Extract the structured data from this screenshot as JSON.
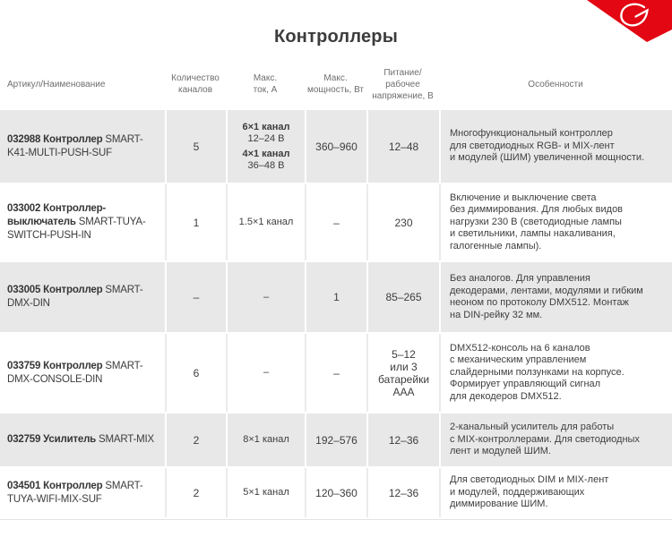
{
  "page": {
    "title": "Контроллеры"
  },
  "brand": {
    "logo": "arlight-swoosh",
    "red": "#e30613"
  },
  "colors": {
    "row_gray": "#e8e8e8",
    "row_white": "#ffffff",
    "header_text": "#6e6e6e",
    "body_text": "#3d3d3d"
  },
  "table": {
    "headers": [
      "Артикул/Наименование",
      "Количество\nканалов",
      "Макс.\nток, А",
      "Макс.\nмощность, Вт",
      "Питание/\nрабочее\nнапряжение, В",
      "Особенности"
    ],
    "rows": [
      {
        "article_bold": "032988 Контроллер",
        "article_rest": "SMART-K41-MULTI-PUSH-SUF",
        "channels": "5",
        "current": [
          {
            "t": "6×1 канал",
            "b": true
          },
          {
            "t": "12–24 В"
          },
          {
            "t": "4×1 канал",
            "b": true,
            "gap": true
          },
          {
            "t": "36–48 В"
          }
        ],
        "power": "360–960",
        "supply": "12–48",
        "features": "Многофункциональный контроллер\nдля светодиодных RGB- и MIX-лент\nи модулей (ШИМ) увеличенной мощности."
      },
      {
        "article_bold": "033002 Контроллер-выключатель",
        "article_rest": "SMART-TUYA-SWITCH-PUSH-IN",
        "channels": "1",
        "current": [
          {
            "t": "1.5×1 канал"
          }
        ],
        "power": "–",
        "supply": "230",
        "features": "Включение и выключение света\nбез диммирования. Для любых видов\nнагрузки 230 В (светодиодные лампы\nи светильники, лампы накаливания,\nгалогенные лампы)."
      },
      {
        "article_bold": "033005 Контроллер",
        "article_rest": "SMART-DMX-DIN",
        "channels": "–",
        "current": [
          {
            "t": "–"
          }
        ],
        "power": "1",
        "supply": "85–265",
        "features": "Без аналогов. Для управления\nдекодерами, лентами, модулями и гибким\nнеоном по протоколу DMX512. Монтаж\nна DIN-рейку 32 мм."
      },
      {
        "article_bold": "033759 Контроллер",
        "article_rest": "SMART-DMX-CONSOLE-DIN",
        "channels": "6",
        "current": [
          {
            "t": "–"
          }
        ],
        "power": "–",
        "supply": "5–12\nили 3\nбатарейки\nААА",
        "features": "DMX512-консоль на 6 каналов\nс механическим управлением\nслайдерными ползунками на корпусе.\nФормирует управляющий сигнал\nдля декодеров DMX512."
      },
      {
        "article_bold": "032759 Усилитель",
        "article_rest": "SMART-MIX",
        "channels": "2",
        "current": [
          {
            "t": "8×1 канал"
          }
        ],
        "power": "192–576",
        "supply": "12–36",
        "features": "2-канальный усилитель для работы\nс MIX-контроллерами. Для светодиодных\nлент и модулей ШИМ."
      },
      {
        "article_bold": "034501 Контроллер",
        "article_rest": "SMART-TUYA-WIFI-MIX-SUF",
        "channels": "2",
        "current": [
          {
            "t": "5×1 канал"
          }
        ],
        "power": "120–360",
        "supply": "12–36",
        "features": "Для светодиодных DIM и MIX-лент\nи модулей, поддерживающих\nдиммирование ШИМ."
      }
    ]
  }
}
